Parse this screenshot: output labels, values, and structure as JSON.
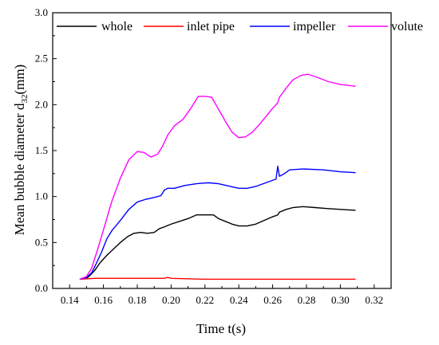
{
  "chart_data": {
    "type": "line",
    "xlabel": "Time t(s)",
    "ylabel": {
      "main": "Mean bubble diameter d",
      "sub": "32",
      "unit": "(mm)"
    },
    "xlim": [
      0.13,
      0.33
    ],
    "ylim": [
      0.0,
      3.0
    ],
    "xticks": [
      "0.14",
      "0.16",
      "0.18",
      "0.20",
      "0.22",
      "0.24",
      "0.26",
      "0.28",
      "0.30",
      "0.32"
    ],
    "yticks": [
      "0.0",
      "0.5",
      "1.0",
      "1.5",
      "2.0",
      "2.5",
      "3.0"
    ],
    "legend_position": "top",
    "series": [
      {
        "name": "whole",
        "color": "#000000",
        "points": [
          [
            0.146,
            0.1
          ],
          [
            0.15,
            0.11
          ],
          [
            0.152,
            0.14
          ],
          [
            0.155,
            0.2
          ],
          [
            0.158,
            0.28
          ],
          [
            0.162,
            0.36
          ],
          [
            0.166,
            0.43
          ],
          [
            0.17,
            0.5
          ],
          [
            0.174,
            0.56
          ],
          [
            0.178,
            0.6
          ],
          [
            0.182,
            0.61
          ],
          [
            0.186,
            0.6
          ],
          [
            0.19,
            0.61
          ],
          [
            0.193,
            0.65
          ],
          [
            0.196,
            0.67
          ],
          [
            0.2,
            0.7
          ],
          [
            0.205,
            0.73
          ],
          [
            0.21,
            0.76
          ],
          [
            0.215,
            0.8
          ],
          [
            0.22,
            0.8
          ],
          [
            0.225,
            0.8
          ],
          [
            0.228,
            0.76
          ],
          [
            0.232,
            0.73
          ],
          [
            0.236,
            0.7
          ],
          [
            0.24,
            0.68
          ],
          [
            0.245,
            0.68
          ],
          [
            0.25,
            0.7
          ],
          [
            0.255,
            0.74
          ],
          [
            0.26,
            0.78
          ],
          [
            0.263,
            0.8
          ],
          [
            0.264,
            0.83
          ],
          [
            0.268,
            0.86
          ],
          [
            0.272,
            0.88
          ],
          [
            0.278,
            0.89
          ],
          [
            0.285,
            0.88
          ],
          [
            0.292,
            0.87
          ],
          [
            0.3,
            0.86
          ],
          [
            0.309,
            0.85
          ]
        ]
      },
      {
        "name": "inlet pipe",
        "color": "#ff0000",
        "points": [
          [
            0.146,
            0.1
          ],
          [
            0.155,
            0.11
          ],
          [
            0.17,
            0.11
          ],
          [
            0.185,
            0.11
          ],
          [
            0.196,
            0.11
          ],
          [
            0.198,
            0.12
          ],
          [
            0.2,
            0.11
          ],
          [
            0.22,
            0.1
          ],
          [
            0.25,
            0.1
          ],
          [
            0.28,
            0.1
          ],
          [
            0.309,
            0.1
          ]
        ]
      },
      {
        "name": "impeller",
        "color": "#0000ff",
        "points": [
          [
            0.146,
            0.1
          ],
          [
            0.15,
            0.12
          ],
          [
            0.153,
            0.17
          ],
          [
            0.156,
            0.28
          ],
          [
            0.159,
            0.4
          ],
          [
            0.162,
            0.54
          ],
          [
            0.165,
            0.63
          ],
          [
            0.17,
            0.74
          ],
          [
            0.175,
            0.86
          ],
          [
            0.18,
            0.94
          ],
          [
            0.185,
            0.97
          ],
          [
            0.19,
            0.99
          ],
          [
            0.194,
            1.01
          ],
          [
            0.196,
            1.07
          ],
          [
            0.198,
            1.09
          ],
          [
            0.202,
            1.09
          ],
          [
            0.208,
            1.12
          ],
          [
            0.215,
            1.14
          ],
          [
            0.222,
            1.15
          ],
          [
            0.228,
            1.14
          ],
          [
            0.235,
            1.11
          ],
          [
            0.24,
            1.09
          ],
          [
            0.245,
            1.09
          ],
          [
            0.25,
            1.11
          ],
          [
            0.256,
            1.15
          ],
          [
            0.262,
            1.19
          ],
          [
            0.263,
            1.33
          ],
          [
            0.264,
            1.22
          ],
          [
            0.267,
            1.25
          ],
          [
            0.27,
            1.29
          ],
          [
            0.278,
            1.3
          ],
          [
            0.29,
            1.29
          ],
          [
            0.3,
            1.27
          ],
          [
            0.309,
            1.26
          ]
        ]
      },
      {
        "name": "volute",
        "color": "#ff00ff",
        "points": [
          [
            0.146,
            0.1
          ],
          [
            0.15,
            0.13
          ],
          [
            0.153,
            0.22
          ],
          [
            0.157,
            0.45
          ],
          [
            0.161,
            0.7
          ],
          [
            0.165,
            0.95
          ],
          [
            0.17,
            1.2
          ],
          [
            0.175,
            1.4
          ],
          [
            0.18,
            1.49
          ],
          [
            0.184,
            1.48
          ],
          [
            0.188,
            1.43
          ],
          [
            0.192,
            1.46
          ],
          [
            0.195,
            1.55
          ],
          [
            0.198,
            1.67
          ],
          [
            0.202,
            1.77
          ],
          [
            0.207,
            1.84
          ],
          [
            0.212,
            1.97
          ],
          [
            0.216,
            2.09
          ],
          [
            0.22,
            2.09
          ],
          [
            0.224,
            2.08
          ],
          [
            0.228,
            1.95
          ],
          [
            0.232,
            1.82
          ],
          [
            0.236,
            1.7
          ],
          [
            0.24,
            1.64
          ],
          [
            0.244,
            1.65
          ],
          [
            0.248,
            1.7
          ],
          [
            0.252,
            1.78
          ],
          [
            0.256,
            1.87
          ],
          [
            0.26,
            1.96
          ],
          [
            0.263,
            2.02
          ],
          [
            0.264,
            2.08
          ],
          [
            0.268,
            2.18
          ],
          [
            0.272,
            2.27
          ],
          [
            0.277,
            2.32
          ],
          [
            0.281,
            2.33
          ],
          [
            0.286,
            2.3
          ],
          [
            0.293,
            2.25
          ],
          [
            0.3,
            2.22
          ],
          [
            0.309,
            2.2
          ]
        ]
      }
    ]
  }
}
